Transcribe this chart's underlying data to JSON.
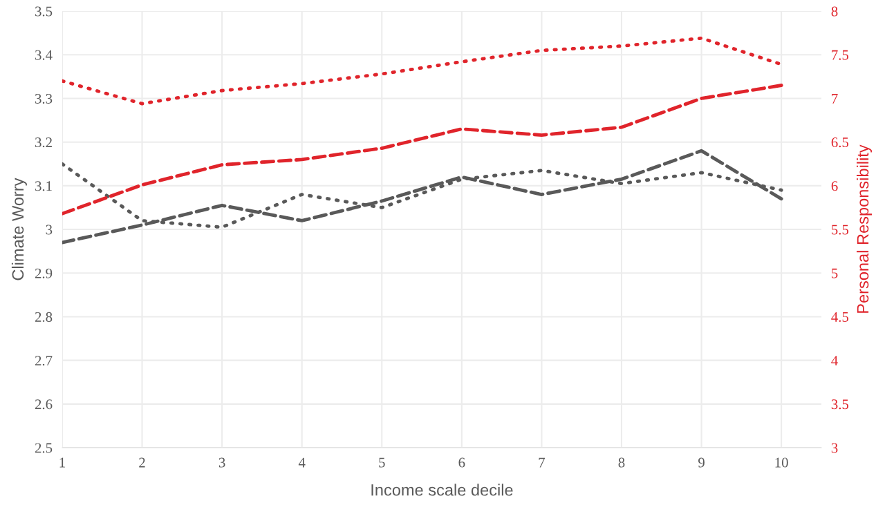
{
  "chart_data": {
    "type": "line",
    "xlabel": "Income scale decile",
    "ylabel": "Climate Worry",
    "y2label": "Personal Responsibility",
    "x": [
      1,
      2,
      3,
      4,
      5,
      6,
      7,
      8,
      9,
      10
    ],
    "series": [
      {
        "color": "#595959",
        "line_style": "dashed",
        "values": [
          2.97,
          3.01,
          3.055,
          3.02,
          3.065,
          3.12,
          3.08,
          3.115,
          3.18,
          3.07
        ]
      },
      {
        "color": "#595959",
        "line_style": "dotted",
        "values": [
          3.15,
          3.02,
          3.005,
          3.08,
          3.05,
          3.115,
          3.135,
          3.105,
          3.13,
          3.09
        ]
      },
      {
        "color": "#e0242b",
        "line_style": "dotted",
        "axis": "y2",
        "values": [
          7.2,
          6.94,
          7.09,
          7.17,
          7.28,
          7.42,
          7.55,
          7.6,
          7.69,
          7.39
        ]
      },
      {
        "color": "#e0242b",
        "line_style": "dashed",
        "axis": "y2",
        "values": [
          5.68,
          6.01,
          6.24,
          6.3,
          6.43,
          6.65,
          6.58,
          6.67,
          7.0,
          7.15
        ]
      }
    ],
    "xlim": [
      1,
      10.5
    ],
    "xticks": [
      1,
      2,
      3,
      4,
      5,
      6,
      7,
      8,
      9,
      10
    ],
    "ylim": [
      2.5,
      3.5
    ],
    "yticks": [
      2.5,
      2.6,
      2.7,
      2.8,
      2.9,
      3,
      3.1,
      3.2,
      3.3,
      3.4,
      3.5
    ],
    "y2lim": [
      3,
      8
    ],
    "y2ticks": [
      3,
      3.5,
      4,
      4.5,
      5,
      5.5,
      6,
      6.5,
      7,
      7.5,
      8
    ],
    "grid": true,
    "marker": "none"
  }
}
